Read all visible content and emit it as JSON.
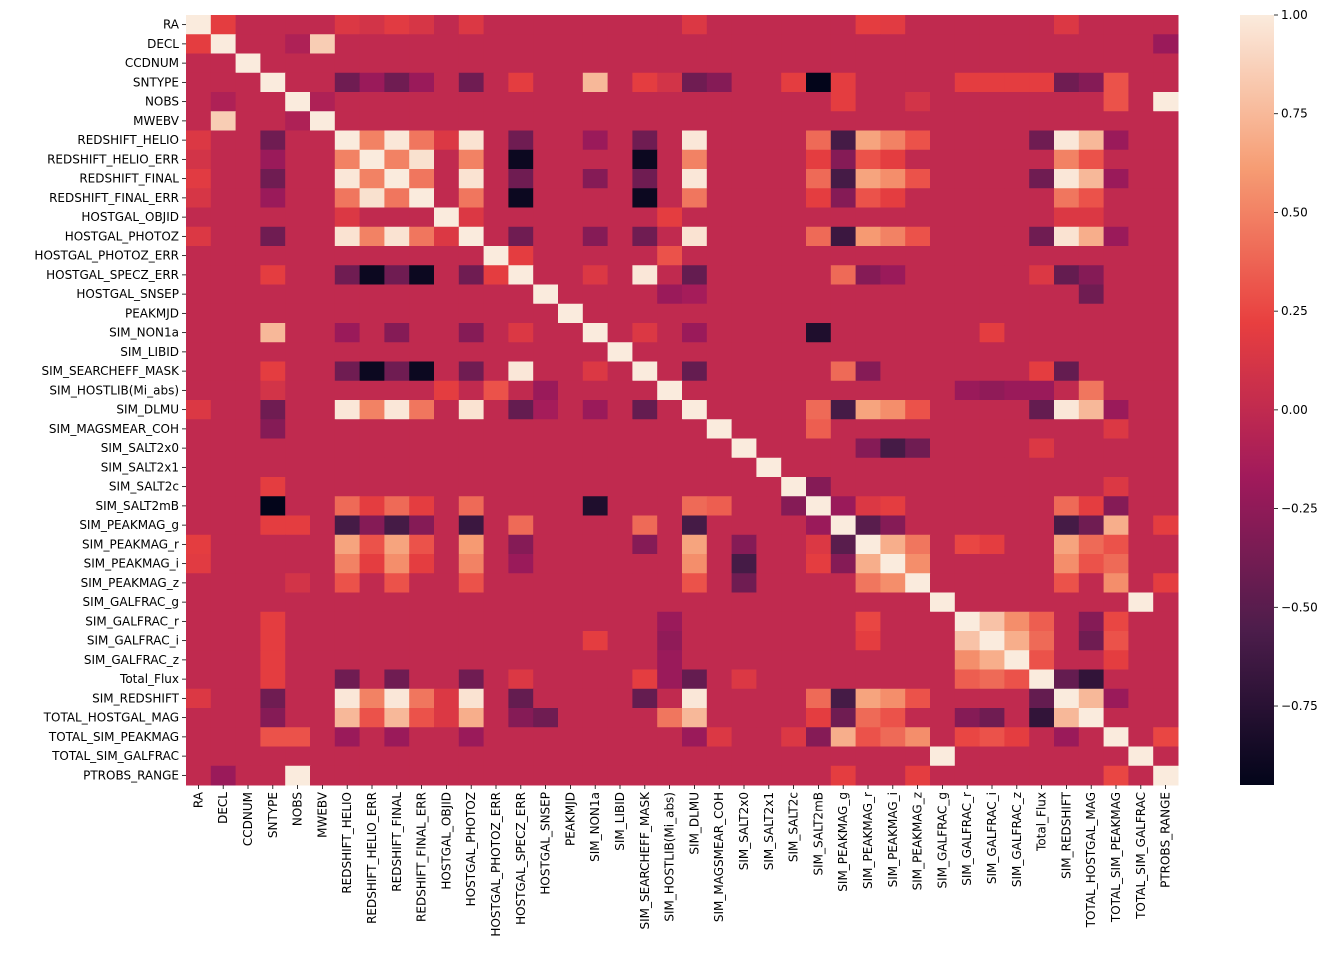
{
  "chart_data": {
    "type": "heatmap",
    "title": "",
    "xlabel": "",
    "ylabel": "",
    "labels": [
      "RA",
      "DECL",
      "CCDNUM",
      "SNTYPE",
      "NOBS",
      "MWEBV",
      "REDSHIFT_HELIO",
      "REDSHIFT_HELIO_ERR",
      "REDSHIFT_FINAL",
      "REDSHIFT_FINAL_ERR",
      "HOSTGAL_OBJID",
      "HOSTGAL_PHOTOZ",
      "HOSTGAL_PHOTOZ_ERR",
      "HOSTGAL_SPECZ_ERR",
      "HOSTGAL_SNSEP",
      "PEAKMJD",
      "SIM_NON1a",
      "SIM_LIBID",
      "SIM_SEARCHEFF_MASK",
      "SIM_HOSTLIB(Mi_abs)",
      "SIM_DLMU",
      "SIM_MAGSMEAR_COH",
      "SIM_SALT2x0",
      "SIM_SALT2x1",
      "SIM_SALT2c",
      "SIM_SALT2mB",
      "SIM_PEAKMAG_g",
      "SIM_PEAKMAG_r",
      "SIM_PEAKMAG_i",
      "SIM_PEAKMAG_z",
      "SIM_GALFRAC_g",
      "SIM_GALFRAC_r",
      "SIM_GALFRAC_i",
      "SIM_GALFRAC_z",
      "Total_Flux",
      "SIM_REDSHIFT",
      "TOTAL_HOSTGAL_MAG",
      "TOTAL_SIM_PEAKMAG",
      "TOTAL_SIM_GALFRAC",
      "PTROBS_RANGE"
    ],
    "colorbar": {
      "vmin": -0.95,
      "vmax": 1.0,
      "ticks": [
        1.0,
        0.75,
        0.5,
        0.25,
        0.0,
        -0.25,
        -0.5,
        -0.75
      ],
      "tick_labels": [
        "1.00",
        "0.75",
        "0.50",
        "0.25",
        "0.00",
        "−0.25",
        "−0.50",
        "−0.75"
      ],
      "colormap": "rocket",
      "colormap_stops": [
        "#03051a",
        "#4c1d4b",
        "#a11a5b",
        "#e83f3f",
        "#f69c73",
        "#faebdd"
      ]
    },
    "base_value": 0.0,
    "cells": [
      [
        0,
        1,
        0.2
      ],
      [
        0,
        6,
        0.15
      ],
      [
        0,
        7,
        0.1
      ],
      [
        0,
        8,
        0.18
      ],
      [
        0,
        9,
        0.12
      ],
      [
        0,
        11,
        0.15
      ],
      [
        0,
        20,
        0.15
      ],
      [
        0,
        27,
        0.2
      ],
      [
        0,
        28,
        0.18
      ],
      [
        0,
        35,
        0.15
      ],
      [
        1,
        5,
        0.85
      ],
      [
        1,
        39,
        -0.2
      ],
      [
        1,
        4,
        -0.1
      ],
      [
        3,
        6,
        -0.4
      ],
      [
        3,
        7,
        -0.2
      ],
      [
        3,
        8,
        -0.4
      ],
      [
        3,
        9,
        -0.2
      ],
      [
        3,
        11,
        -0.4
      ],
      [
        3,
        13,
        0.2
      ],
      [
        3,
        16,
        0.75
      ],
      [
        3,
        18,
        0.2
      ],
      [
        3,
        19,
        0.1
      ],
      [
        3,
        20,
        -0.4
      ],
      [
        3,
        21,
        -0.3
      ],
      [
        3,
        24,
        0.2
      ],
      [
        3,
        25,
        -0.95
      ],
      [
        3,
        26,
        0.2
      ],
      [
        3,
        31,
        0.2
      ],
      [
        3,
        32,
        0.2
      ],
      [
        3,
        33,
        0.2
      ],
      [
        3,
        34,
        0.2
      ],
      [
        3,
        35,
        -0.4
      ],
      [
        3,
        36,
        -0.3
      ],
      [
        3,
        37,
        0.3
      ],
      [
        4,
        5,
        -0.1
      ],
      [
        4,
        26,
        0.2
      ],
      [
        4,
        29,
        0.1
      ],
      [
        4,
        37,
        0.3
      ],
      [
        4,
        39,
        1.0
      ],
      [
        6,
        7,
        0.5
      ],
      [
        6,
        8,
        0.98
      ],
      [
        6,
        9,
        0.45
      ],
      [
        6,
        10,
        0.15
      ],
      [
        6,
        11,
        0.96
      ],
      [
        6,
        13,
        -0.4
      ],
      [
        6,
        16,
        -0.2
      ],
      [
        6,
        18,
        -0.4
      ],
      [
        6,
        20,
        0.98
      ],
      [
        6,
        25,
        0.4
      ],
      [
        6,
        26,
        -0.6
      ],
      [
        6,
        27,
        0.65
      ],
      [
        6,
        28,
        0.5
      ],
      [
        6,
        29,
        0.3
      ],
      [
        6,
        34,
        -0.4
      ],
      [
        6,
        35,
        0.98
      ],
      [
        6,
        36,
        0.75
      ],
      [
        6,
        37,
        -0.2
      ],
      [
        7,
        8,
        0.5
      ],
      [
        7,
        9,
        0.95
      ],
      [
        7,
        11,
        0.5
      ],
      [
        7,
        13,
        -0.9
      ],
      [
        7,
        18,
        -0.9
      ],
      [
        7,
        20,
        0.5
      ],
      [
        7,
        25,
        0.2
      ],
      [
        7,
        26,
        -0.3
      ],
      [
        7,
        27,
        0.3
      ],
      [
        7,
        28,
        0.2
      ],
      [
        7,
        35,
        0.5
      ],
      [
        7,
        36,
        0.3
      ],
      [
        8,
        9,
        0.45
      ],
      [
        8,
        11,
        0.96
      ],
      [
        8,
        13,
        -0.4
      ],
      [
        8,
        16,
        -0.3
      ],
      [
        8,
        18,
        -0.4
      ],
      [
        8,
        20,
        0.98
      ],
      [
        8,
        25,
        0.4
      ],
      [
        8,
        26,
        -0.6
      ],
      [
        8,
        27,
        0.65
      ],
      [
        8,
        28,
        0.55
      ],
      [
        8,
        29,
        0.3
      ],
      [
        8,
        34,
        -0.4
      ],
      [
        8,
        35,
        0.98
      ],
      [
        8,
        36,
        0.75
      ],
      [
        8,
        37,
        -0.2
      ],
      [
        9,
        11,
        0.45
      ],
      [
        9,
        13,
        -0.9
      ],
      [
        9,
        18,
        -0.9
      ],
      [
        9,
        20,
        0.45
      ],
      [
        9,
        25,
        0.2
      ],
      [
        9,
        26,
        -0.3
      ],
      [
        9,
        27,
        0.3
      ],
      [
        9,
        28,
        0.2
      ],
      [
        9,
        35,
        0.45
      ],
      [
        9,
        36,
        0.3
      ],
      [
        10,
        11,
        0.15
      ],
      [
        10,
        19,
        0.2
      ],
      [
        10,
        35,
        0.15
      ],
      [
        10,
        36,
        0.15
      ],
      [
        11,
        13,
        -0.4
      ],
      [
        11,
        16,
        -0.3
      ],
      [
        11,
        18,
        -0.4
      ],
      [
        11,
        20,
        0.96
      ],
      [
        11,
        25,
        0.4
      ],
      [
        11,
        26,
        -0.65
      ],
      [
        11,
        27,
        0.6
      ],
      [
        11,
        28,
        0.5
      ],
      [
        11,
        29,
        0.3
      ],
      [
        11,
        34,
        -0.4
      ],
      [
        11,
        35,
        0.96
      ],
      [
        11,
        36,
        0.7
      ],
      [
        11,
        37,
        -0.2
      ],
      [
        12,
        19,
        0.3
      ],
      [
        12,
        13,
        0.2
      ],
      [
        13,
        16,
        0.15
      ],
      [
        13,
        18,
        0.98
      ],
      [
        13,
        20,
        -0.45
      ],
      [
        13,
        26,
        0.4
      ],
      [
        13,
        27,
        -0.3
      ],
      [
        13,
        28,
        -0.2
      ],
      [
        13,
        34,
        0.15
      ],
      [
        13,
        35,
        -0.45
      ],
      [
        13,
        36,
        -0.3
      ],
      [
        14,
        19,
        -0.2
      ],
      [
        14,
        20,
        -0.15
      ],
      [
        14,
        36,
        -0.4
      ],
      [
        16,
        18,
        0.15
      ],
      [
        16,
        20,
        -0.2
      ],
      [
        16,
        25,
        -0.8
      ],
      [
        16,
        32,
        0.2
      ],
      [
        18,
        20,
        -0.45
      ],
      [
        18,
        26,
        0.4
      ],
      [
        18,
        27,
        -0.3
      ],
      [
        18,
        35,
        -0.45
      ],
      [
        18,
        34,
        0.2
      ],
      [
        19,
        31,
        -0.2
      ],
      [
        19,
        32,
        -0.25
      ],
      [
        19,
        33,
        -0.2
      ],
      [
        19,
        36,
        0.45
      ],
      [
        19,
        34,
        -0.2
      ],
      [
        20,
        25,
        0.4
      ],
      [
        20,
        26,
        -0.6
      ],
      [
        20,
        27,
        0.65
      ],
      [
        20,
        28,
        0.55
      ],
      [
        20,
        29,
        0.3
      ],
      [
        20,
        34,
        -0.45
      ],
      [
        20,
        35,
        0.98
      ],
      [
        20,
        36,
        0.75
      ],
      [
        20,
        37,
        -0.2
      ],
      [
        21,
        25,
        0.35
      ],
      [
        21,
        37,
        0.15
      ],
      [
        22,
        27,
        -0.3
      ],
      [
        22,
        28,
        -0.6
      ],
      [
        22,
        29,
        -0.4
      ],
      [
        22,
        34,
        0.15
      ],
      [
        24,
        25,
        -0.3
      ],
      [
        24,
        37,
        0.15
      ],
      [
        25,
        26,
        -0.2
      ],
      [
        25,
        27,
        0.15
      ],
      [
        25,
        28,
        0.2
      ],
      [
        25,
        35,
        0.4
      ],
      [
        25,
        36,
        0.2
      ],
      [
        25,
        37,
        -0.3
      ],
      [
        26,
        27,
        -0.5
      ],
      [
        26,
        28,
        -0.3
      ],
      [
        26,
        35,
        -0.6
      ],
      [
        26,
        36,
        -0.4
      ],
      [
        26,
        37,
        0.7
      ],
      [
        26,
        39,
        0.2
      ],
      [
        27,
        28,
        0.7
      ],
      [
        27,
        29,
        0.45
      ],
      [
        27,
        31,
        0.25
      ],
      [
        27,
        32,
        0.2
      ],
      [
        27,
        35,
        0.65
      ],
      [
        27,
        36,
        0.4
      ],
      [
        27,
        37,
        0.3
      ],
      [
        28,
        29,
        0.55
      ],
      [
        28,
        35,
        0.55
      ],
      [
        28,
        36,
        0.3
      ],
      [
        28,
        37,
        0.4
      ],
      [
        29,
        35,
        0.3
      ],
      [
        29,
        37,
        0.55
      ],
      [
        29,
        39,
        0.2
      ],
      [
        30,
        38,
        1.0
      ],
      [
        31,
        32,
        0.8
      ],
      [
        31,
        33,
        0.55
      ],
      [
        31,
        34,
        0.35
      ],
      [
        31,
        37,
        0.25
      ],
      [
        31,
        36,
        -0.3
      ],
      [
        32,
        33,
        0.7
      ],
      [
        32,
        34,
        0.4
      ],
      [
        32,
        37,
        0.3
      ],
      [
        32,
        36,
        -0.4
      ],
      [
        33,
        34,
        0.3
      ],
      [
        33,
        37,
        0.2
      ],
      [
        34,
        35,
        -0.45
      ],
      [
        34,
        36,
        -0.7
      ],
      [
        35,
        36,
        0.75
      ],
      [
        35,
        37,
        -0.2
      ],
      [
        37,
        39,
        0.25
      ]
    ],
    "diagonal_value": 1.0,
    "grid": false,
    "legend": "colorbar-right"
  }
}
